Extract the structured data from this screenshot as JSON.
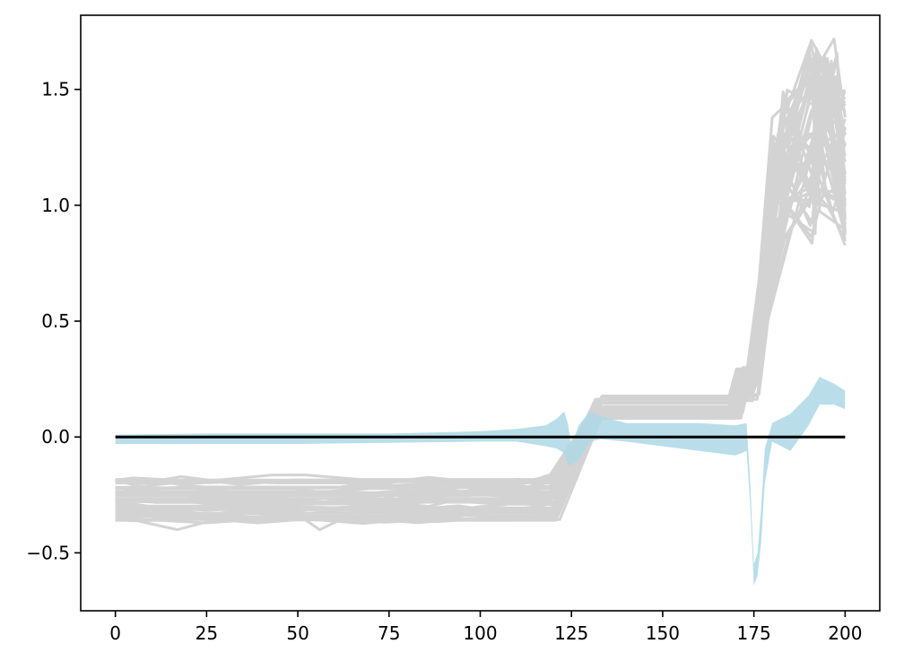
{
  "chart_data": {
    "type": "line",
    "title": "",
    "xlabel": "",
    "ylabel": "",
    "xlim": [
      -9.5,
      209.5
    ],
    "ylim": [
      -0.75,
      1.82
    ],
    "xticks": [
      0,
      25,
      50,
      75,
      100,
      125,
      150,
      175,
      200
    ],
    "yticks": [
      -0.5,
      0.0,
      0.5,
      1.0,
      1.5
    ],
    "xtick_labels": [
      "0",
      "25",
      "50",
      "75",
      "100",
      "125",
      "150",
      "175",
      "200"
    ],
    "ytick_labels": [
      "−0.5",
      "0.0",
      "0.5",
      "1.0",
      "1.5"
    ],
    "grid": false,
    "legend": "none",
    "colors": {
      "gray": "#d3d3d3",
      "band": "#add8e6",
      "zero_line": "#000000"
    },
    "gray_lines": {
      "count": 50,
      "x_max": 200,
      "phases": [
        {
          "x": [
            0,
            120
          ],
          "y_range": [
            -0.36,
            -0.18
          ]
        },
        {
          "x": [
            133,
            170
          ],
          "y_range": [
            0.08,
            0.18
          ]
        },
        {
          "x": [
            172,
            176
          ],
          "y_range": [
            0.15,
            0.3
          ]
        },
        {
          "x": [
            182,
            200
          ],
          "y_range": [
            0.8,
            1.72
          ]
        }
      ],
      "dips": [
        {
          "x": [
            16,
            21
          ],
          "y": -0.4
        },
        {
          "x": [
            53,
            57
          ],
          "y": -0.4
        }
      ]
    },
    "band": {
      "x": [
        0,
        25,
        50,
        75,
        100,
        110,
        118,
        121,
        123,
        124,
        125,
        127,
        130,
        133,
        140,
        150,
        160,
        170,
        173,
        174,
        175,
        176,
        177,
        178,
        180,
        185,
        190,
        193,
        197,
        200
      ],
      "upper": [
        0.01,
        0.015,
        0.015,
        0.015,
        0.025,
        0.035,
        0.05,
        0.08,
        0.11,
        0.06,
        -0.04,
        0.05,
        0.11,
        0.09,
        0.06,
        0.06,
        0.06,
        0.05,
        0.06,
        -0.2,
        -0.55,
        -0.5,
        -0.3,
        -0.05,
        0.06,
        0.1,
        0.18,
        0.26,
        0.23,
        0.2
      ],
      "lower": [
        -0.03,
        -0.03,
        -0.03,
        -0.025,
        -0.02,
        -0.02,
        -0.04,
        -0.05,
        -0.07,
        -0.12,
        -0.12,
        -0.1,
        -0.02,
        -0.01,
        -0.02,
        -0.04,
        -0.06,
        -0.08,
        -0.06,
        -0.3,
        -0.64,
        -0.6,
        -0.45,
        -0.2,
        -0.02,
        -0.06,
        0.05,
        0.14,
        0.14,
        0.12
      ]
    },
    "zero_line": {
      "x": [
        0,
        200
      ],
      "y": [
        0,
        0
      ]
    }
  }
}
